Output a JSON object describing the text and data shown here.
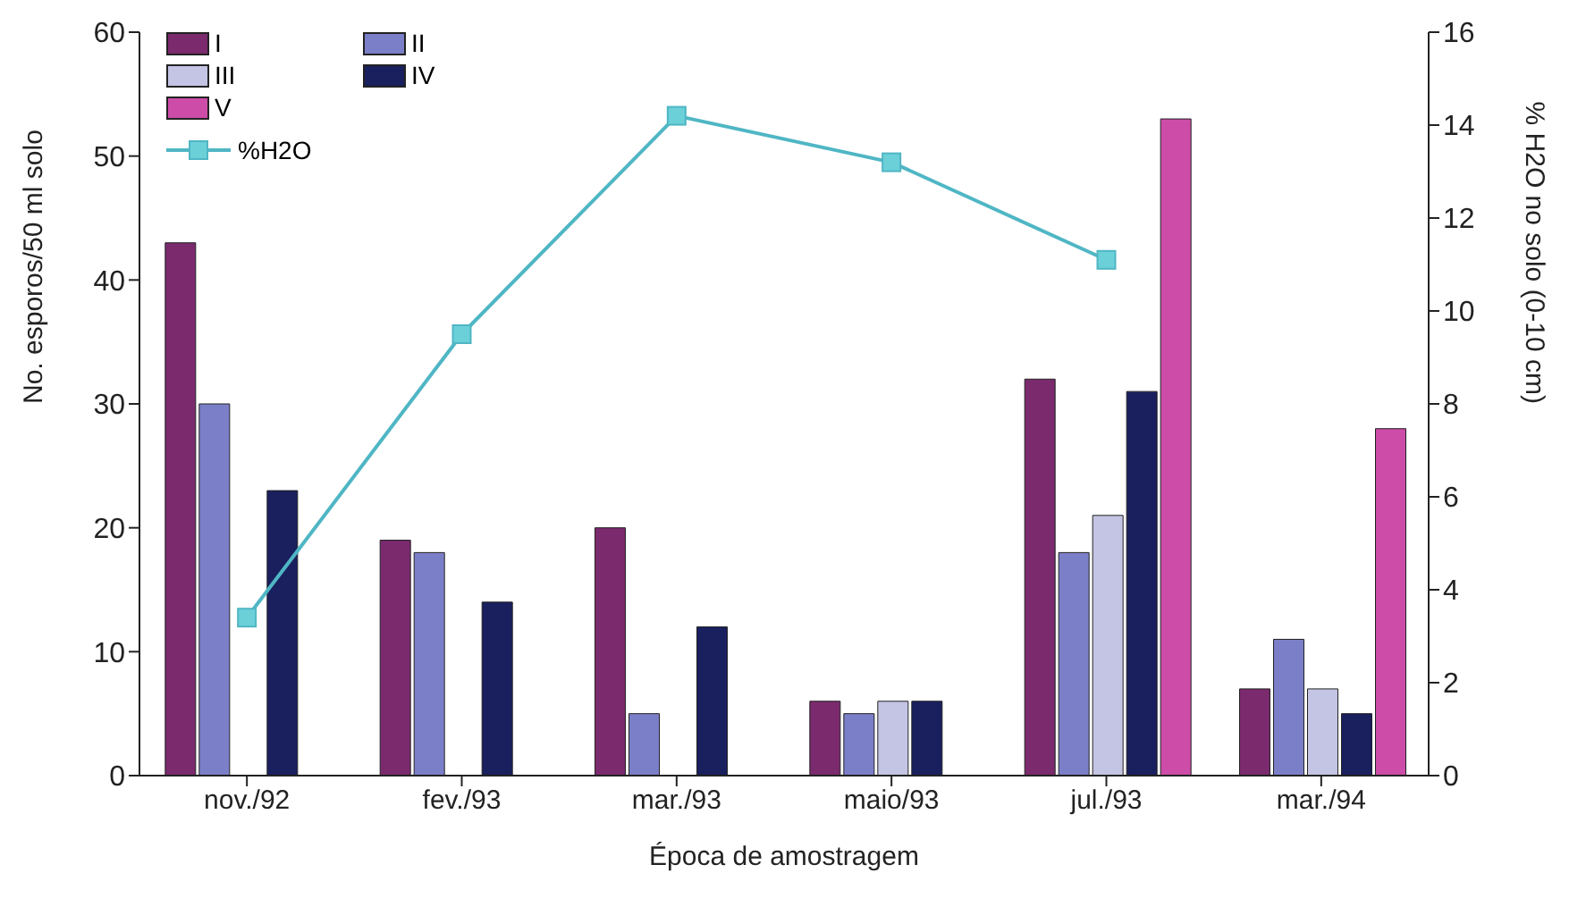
{
  "chart_data": {
    "type": "bar",
    "xlabel": "Época de amostragem",
    "ylabel": "No. esporos/50 ml solo",
    "y2label": "% H2O no solo (0-10 cm)",
    "categories": [
      "nov./92",
      "fev./93",
      "mar./93",
      "maio/93",
      "jul./93",
      "mar./94"
    ],
    "series": [
      {
        "name": "I",
        "color": "#7b2a6e",
        "values": [
          43,
          19,
          20,
          6,
          32,
          7
        ]
      },
      {
        "name": "II",
        "color": "#7b7fc8",
        "values": [
          30,
          18,
          5,
          5,
          18,
          11
        ]
      },
      {
        "name": "III",
        "color": "#c4c4e4",
        "values": [
          null,
          null,
          null,
          6,
          21,
          7
        ]
      },
      {
        "name": "IV",
        "color": "#1a1f5e",
        "values": [
          23,
          14,
          12,
          6,
          31,
          5
        ]
      },
      {
        "name": "V",
        "color": "#cc4ca8",
        "values": [
          null,
          null,
          null,
          null,
          53,
          28
        ]
      },
      {
        "name": "%H2O",
        "type": "line",
        "axis": "y2",
        "color": "#4fb6c4",
        "marker": "square",
        "values": [
          3.4,
          9.5,
          14.2,
          13.2,
          11.1,
          null
        ]
      }
    ],
    "ylim": [
      0,
      60
    ],
    "yticks": [
      0,
      10,
      20,
      30,
      40,
      50,
      60
    ],
    "y2lim": [
      0,
      16
    ],
    "y2ticks": [
      0,
      2,
      4,
      6,
      8,
      10,
      12,
      14,
      16
    ],
    "legend": "top left"
  }
}
